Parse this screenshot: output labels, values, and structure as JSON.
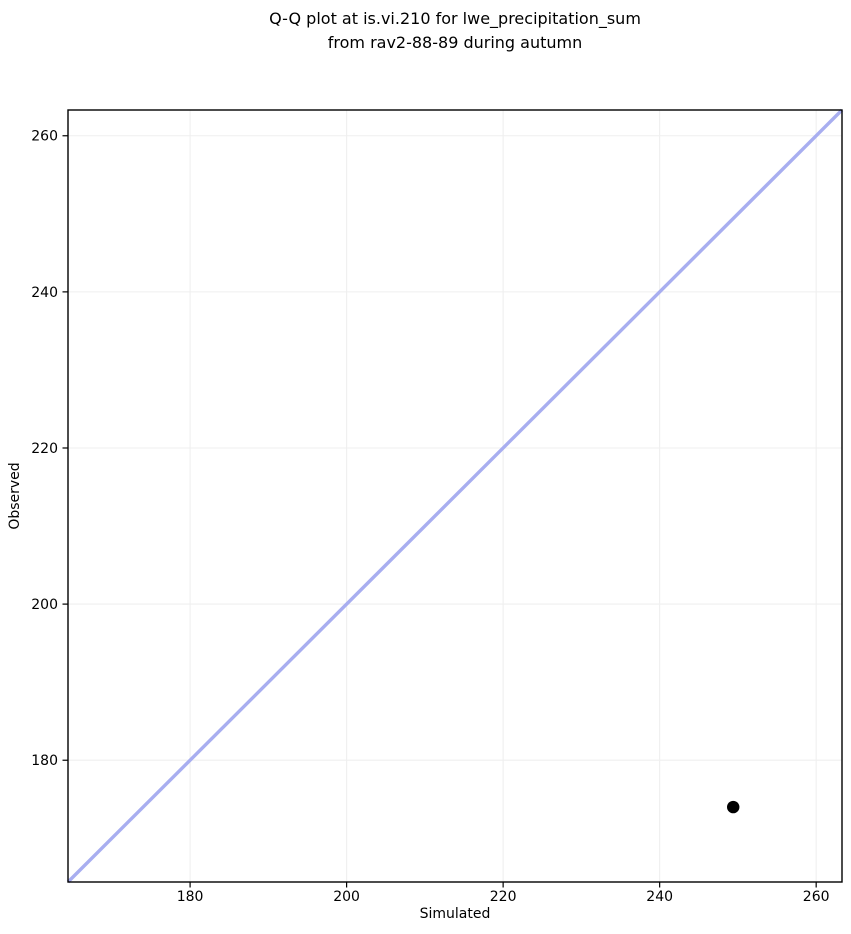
{
  "figure": {
    "title_line1": "Q-Q plot at is.vi.210 for lwe_precipitation_sum",
    "title_line2": "from rav2-88-89 during autumn"
  },
  "chart_data": {
    "type": "scatter",
    "title": "Q-Q plot at is.vi.210 for lwe_precipitation_sum\nfrom rav2-88-89 during autumn",
    "xlabel": "Simulated",
    "ylabel": "Observed",
    "xlim": [
      164.4,
      263.3
    ],
    "ylim": [
      164.4,
      263.3
    ],
    "xticks": [
      180,
      200,
      220,
      240,
      260
    ],
    "yticks": [
      180,
      200,
      220,
      240,
      260
    ],
    "grid": true,
    "legend": false,
    "points": [
      {
        "simulated": 249.4,
        "observed": 174.0
      }
    ],
    "identity_line": {
      "start": 164.4,
      "end": 263.3
    },
    "styles": {
      "identity_line_color": "#a8aef0",
      "identity_line_width": 3.4,
      "point_color": "#000000",
      "point_radius": 6.2,
      "grid_color": "#efefef",
      "frame_color": "#000000",
      "tick_color": "#000000",
      "background": "#ffffff"
    }
  }
}
